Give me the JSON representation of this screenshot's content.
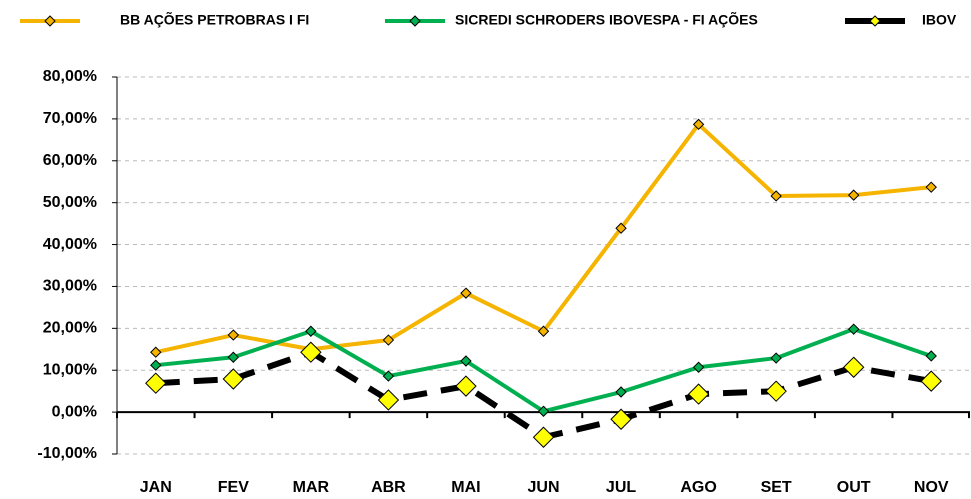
{
  "chart_data": {
    "type": "line",
    "categories": [
      "JAN",
      "FEV",
      "MAR",
      "ABR",
      "MAI",
      "JUN",
      "JUL",
      "AGO",
      "SET",
      "OUT",
      "NOV"
    ],
    "series": [
      {
        "name": "BB AÇÕES PETROBRAS I FI",
        "color": "#f5b400",
        "values": [
          14.3,
          18.4,
          15.0,
          17.2,
          28.4,
          19.3,
          43.9,
          68.7,
          51.6,
          51.8,
          53.7
        ]
      },
      {
        "name": "SICREDI SCHRODERS IBOVESPA - FI AÇÕES",
        "color": "#00b050",
        "values": [
          11.2,
          13.1,
          19.3,
          8.6,
          12.2,
          0.2,
          4.8,
          10.7,
          12.9,
          19.8,
          13.4
        ]
      },
      {
        "name": "IBOV",
        "color": "#000000",
        "values": [
          6.9,
          7.9,
          14.3,
          2.9,
          6.2,
          -6.0,
          -1.7,
          4.3,
          5.0,
          10.7,
          7.4
        ]
      }
    ],
    "ylim": [
      -10,
      80
    ],
    "yticks": [
      {
        "value": -10,
        "label": "-10,00%"
      },
      {
        "value": 0,
        "label": "0,00%"
      },
      {
        "value": 10,
        "label": "10,00%"
      },
      {
        "value": 20,
        "label": "20,00%"
      },
      {
        "value": 30,
        "label": "30,00%"
      },
      {
        "value": 40,
        "label": "40,00%"
      },
      {
        "value": 50,
        "label": "50,00%"
      },
      {
        "value": 60,
        "label": "60,00%"
      },
      {
        "value": 70,
        "label": "70,00%"
      },
      {
        "value": 80,
        "label": "80,00%"
      }
    ],
    "grid": true
  }
}
